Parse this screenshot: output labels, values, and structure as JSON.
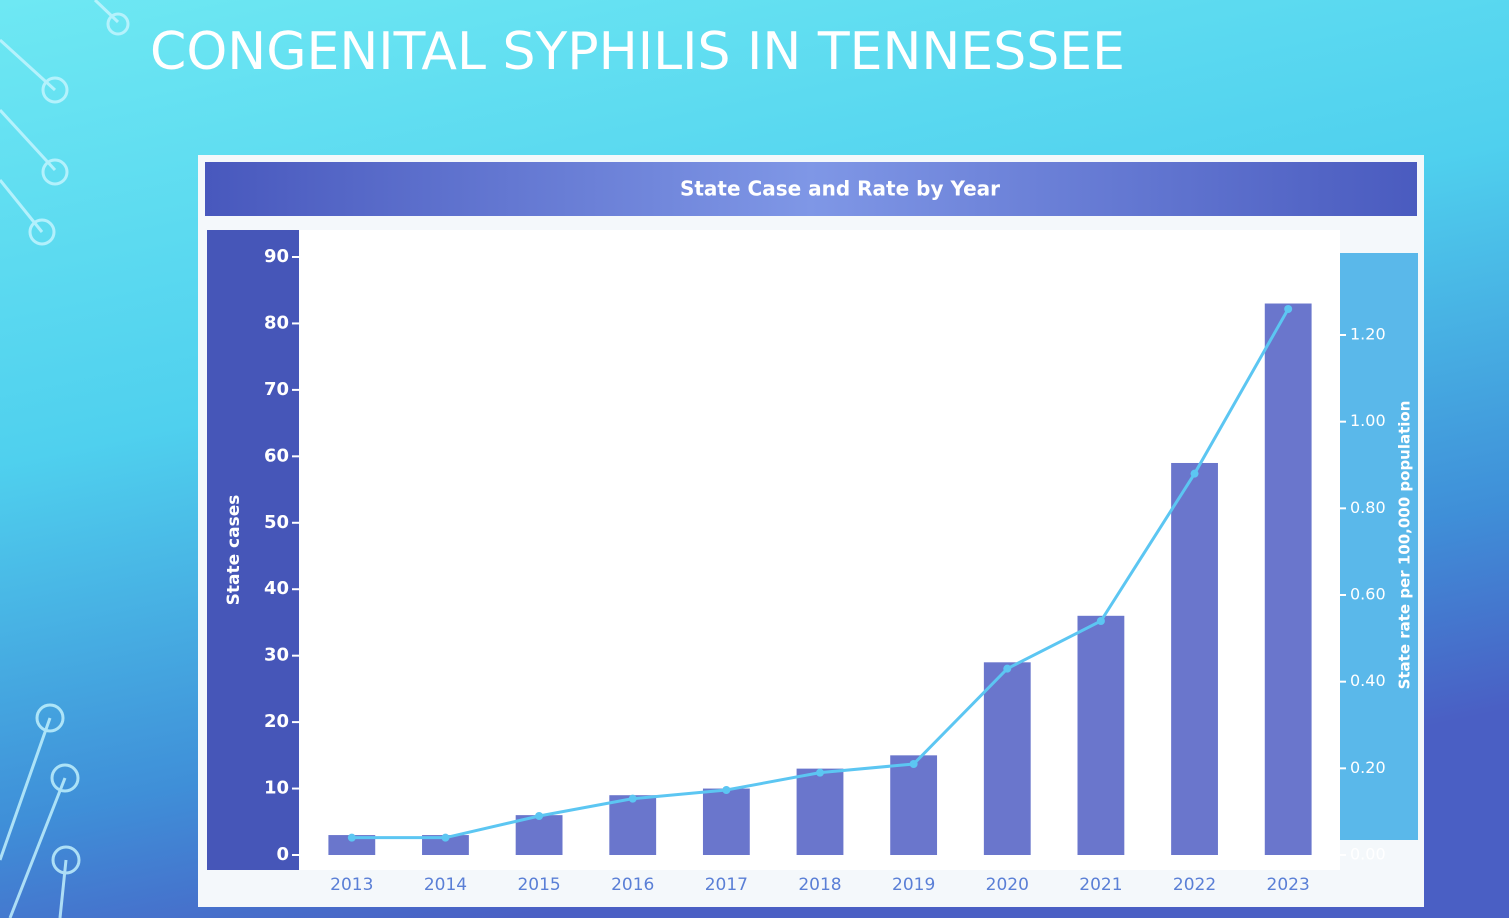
{
  "slide_title": "CONGENITAL SYPHILIS IN TENNESSEE",
  "chart_data": {
    "type": "bar_line",
    "title": "State Case and Rate by Year",
    "categories": [
      "2013",
      "2014",
      "2015",
      "2016",
      "2017",
      "2018",
      "2019",
      "2020",
      "2021",
      "2022",
      "2023"
    ],
    "y_label": "State cases",
    "y2_label": "State rate per 100,000 population",
    "series": [
      {
        "name": "State cases",
        "type": "bar",
        "color": "#6a76cc",
        "values": [
          3,
          3,
          6,
          9,
          10,
          13,
          15,
          29,
          36,
          59,
          83
        ]
      },
      {
        "name": "State rate per 100,000 population",
        "type": "line",
        "axis": "y2",
        "color": "#5cc6f2",
        "values": [
          0.04,
          0.04,
          0.09,
          0.13,
          0.15,
          0.19,
          0.21,
          0.43,
          0.54,
          0.88,
          1.26
        ]
      }
    ],
    "ylim": [
      0,
      90
    ],
    "yticks": [
      0,
      10,
      20,
      30,
      40,
      50,
      60,
      70,
      80,
      90
    ],
    "y2lim": [
      0,
      1.38
    ],
    "y2ticks": [
      {
        "value": 0,
        "label": "0.00"
      },
      {
        "value": 0.2,
        "label": "0.20"
      },
      {
        "value": 0.4,
        "label": "0.40"
      },
      {
        "value": 0.6,
        "label": "0.60"
      },
      {
        "value": 0.8,
        "label": "0.80"
      },
      {
        "value": 1.0,
        "label": "1.00"
      },
      {
        "value": 1.2,
        "label": "1.20"
      }
    ],
    "grid": false
  }
}
